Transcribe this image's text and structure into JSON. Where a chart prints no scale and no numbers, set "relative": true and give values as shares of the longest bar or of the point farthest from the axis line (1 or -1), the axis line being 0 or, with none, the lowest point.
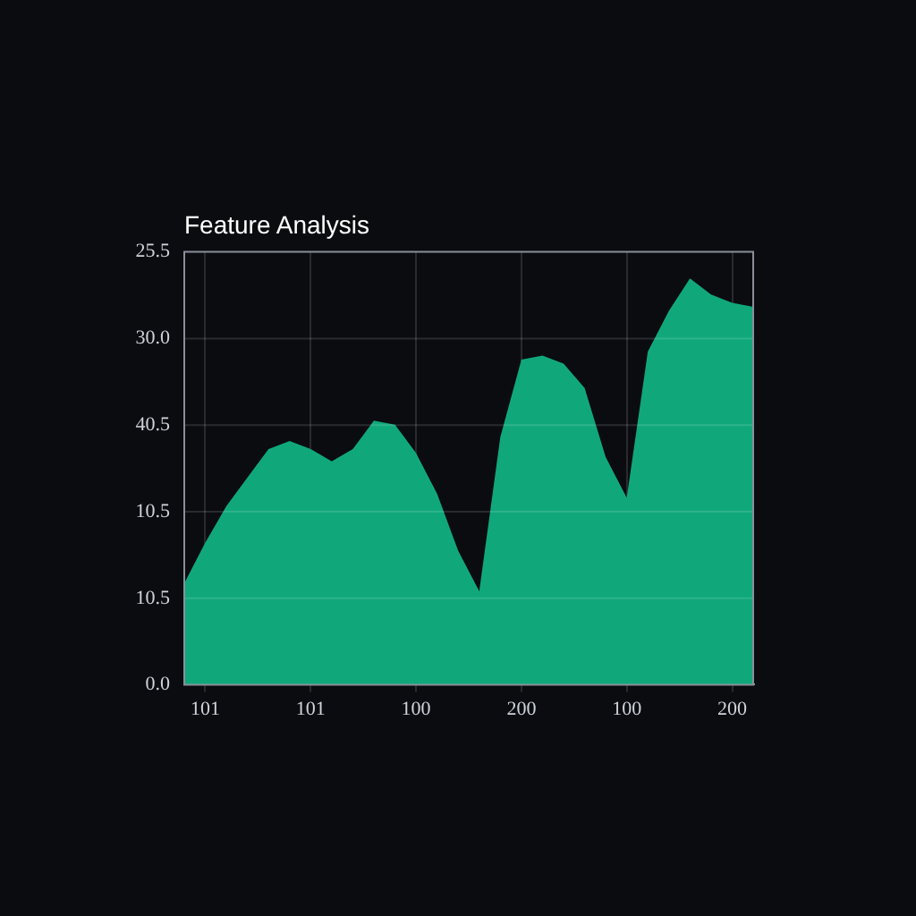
{
  "chart_data": {
    "type": "area",
    "title": "Feature Analysis",
    "relative": true,
    "categories": [
      null,
      "101",
      null,
      null,
      null,
      null,
      "101",
      null,
      null,
      null,
      null,
      "100",
      null,
      null,
      null,
      null,
      "200",
      null,
      null,
      null,
      null,
      "100",
      null,
      null,
      null,
      null,
      "200",
      null
    ],
    "series": [
      {
        "color": "#10a87b",
        "values": [
          0.25,
          0.35,
          0.44,
          0.51,
          0.58,
          0.6,
          0.58,
          0.55,
          0.58,
          0.65,
          0.64,
          0.57,
          0.47,
          0.33,
          0.23,
          0.61,
          0.8,
          0.81,
          0.79,
          0.73,
          0.56,
          0.46,
          0.82,
          0.92,
          1.0,
          0.96,
          0.94,
          0.93
        ]
      }
    ],
    "annotations": [
      "25.5",
      "30.0",
      "40.5",
      "10.5",
      "10.5",
      "0.0"
    ],
    "grid": true
  }
}
